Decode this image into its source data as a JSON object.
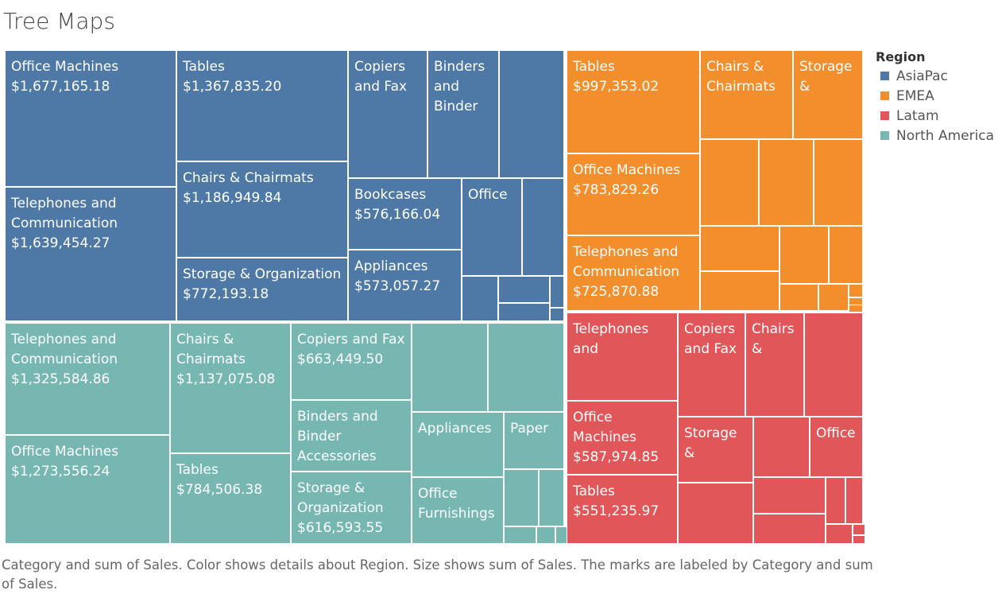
{
  "chart_data": {
    "type": "treemap",
    "title": "Tree Maps",
    "caption": "Category and sum of Sales.  Color shows details about Region.  Size shows sum of Sales.  The marks are labeled by Category and sum of Sales.",
    "legend": {
      "title": "Region",
      "placement": "top-right",
      "items": [
        {
          "name": "AsiaPac",
          "color": "#4e79a7"
        },
        {
          "name": "EMEA",
          "color": "#f28e2b"
        },
        {
          "name": "Latam",
          "color": "#e15759"
        },
        {
          "name": "North America",
          "color": "#76b7b2"
        }
      ]
    },
    "labeled_cells": [
      {
        "region": "AsiaPac",
        "category": "Office Machines",
        "value_label": "$1,677,165.18"
      },
      {
        "region": "AsiaPac",
        "category": "Telephones and Communication",
        "value_label": "$1,639,454.27"
      },
      {
        "region": "AsiaPac",
        "category": "Tables",
        "value_label": "$1,367,835.20"
      },
      {
        "region": "AsiaPac",
        "category": "Chairs & Chairmats",
        "value_label": "$1,186,949.84"
      },
      {
        "region": "AsiaPac",
        "category": "Storage & Organization",
        "value_label": "$772,193.18"
      },
      {
        "region": "AsiaPac",
        "category": "Copiers and Fax",
        "value_label": ""
      },
      {
        "region": "AsiaPac",
        "category": "Binders and Binder",
        "value_label": ""
      },
      {
        "region": "AsiaPac",
        "category": "Bookcases",
        "value_label": "$576,166.04"
      },
      {
        "region": "AsiaPac",
        "category": "Appliances",
        "value_label": "$573,057.27"
      },
      {
        "region": "AsiaPac",
        "category": "Office",
        "value_label": ""
      },
      {
        "region": "EMEA",
        "category": "Tables",
        "value_label": "$997,353.02"
      },
      {
        "region": "EMEA",
        "category": "Chairs & Chairmats",
        "value_label": ""
      },
      {
        "region": "EMEA",
        "category": "Storage &",
        "value_label": ""
      },
      {
        "region": "EMEA",
        "category": "Office Machines",
        "value_label": "$783,829.26"
      },
      {
        "region": "EMEA",
        "category": "Telephones and Communication",
        "value_label": "$725,870.88"
      },
      {
        "region": "North America",
        "category": "Telephones and Communication",
        "value_label": "$1,325,584.86"
      },
      {
        "region": "North America",
        "category": "Office Machines",
        "value_label": "$1,273,556.24"
      },
      {
        "region": "North America",
        "category": "Chairs & Chairmats",
        "value_label": "$1,137,075.08"
      },
      {
        "region": "North America",
        "category": "Tables",
        "value_label": "$784,506.38"
      },
      {
        "region": "North America",
        "category": "Copiers and Fax",
        "value_label": "$663,449.50"
      },
      {
        "region": "North America",
        "category": "Binders and Binder Accessories",
        "value_label": ""
      },
      {
        "region": "North America",
        "category": "Storage & Organization",
        "value_label": "$616,593.55"
      },
      {
        "region": "North America",
        "category": "Appliances",
        "value_label": ""
      },
      {
        "region": "North America",
        "category": "Paper",
        "value_label": ""
      },
      {
        "region": "North America",
        "category": "Office Furnishings",
        "value_label": ""
      },
      {
        "region": "Latam",
        "category": "Telephones and",
        "value_label": ""
      },
      {
        "region": "Latam",
        "category": "Copiers and Fax",
        "value_label": ""
      },
      {
        "region": "Latam",
        "category": "Chairs &",
        "value_label": ""
      },
      {
        "region": "Latam",
        "category": "Office Machines",
        "value_label": "$587,974.85"
      },
      {
        "region": "Latam",
        "category": "Storage &",
        "value_label": ""
      },
      {
        "region": "Latam",
        "category": "Office",
        "value_label": ""
      },
      {
        "region": "Latam",
        "category": "Tables",
        "value_label": "$551,235.97"
      }
    ]
  }
}
